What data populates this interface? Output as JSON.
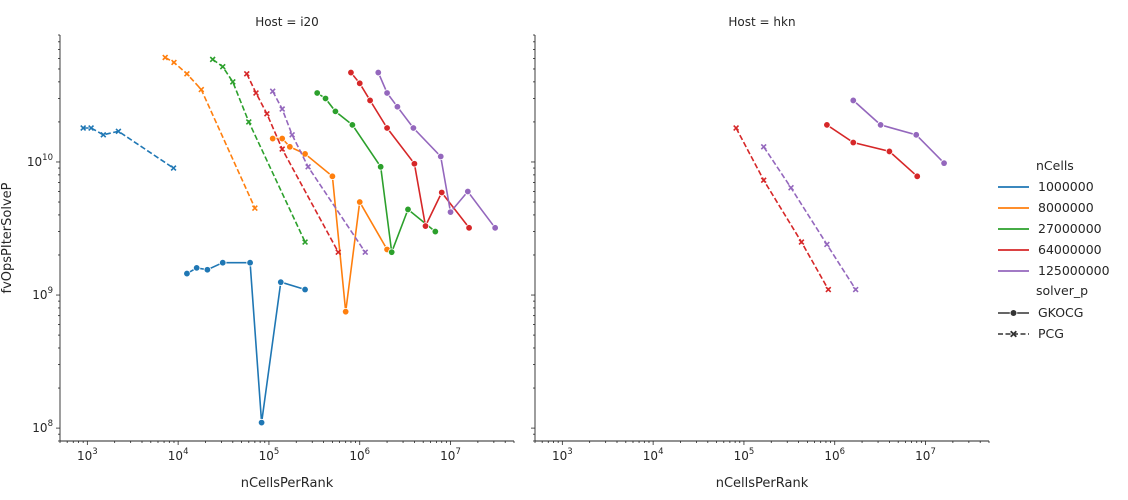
{
  "chart_data": {
    "type": "line",
    "x_scale": "log",
    "y_scale": "log",
    "xlabel": "nCellsPerRank",
    "ylabel": "fvOpsPIterSolveP",
    "xlim": [
      500,
      50000000
    ],
    "ylim": [
      80000000,
      90000000000
    ],
    "x_ticks": [
      {
        "value": 1000,
        "base": "10",
        "exp": "3"
      },
      {
        "value": 10000,
        "base": "10",
        "exp": "4"
      },
      {
        "value": 100000,
        "base": "10",
        "exp": "5"
      },
      {
        "value": 1000000,
        "base": "10",
        "exp": "6"
      },
      {
        "value": 10000000,
        "base": "10",
        "exp": "7"
      }
    ],
    "y_ticks": [
      {
        "value": 100000000,
        "base": "10",
        "exp": "8"
      },
      {
        "value": 1000000000,
        "base": "10",
        "exp": "9"
      },
      {
        "value": 10000000000,
        "base": "10",
        "exp": "10"
      }
    ],
    "legend": {
      "position": "right",
      "hue_title": "nCells",
      "hue_entries": [
        {
          "label": "1000000",
          "color": "#1f77b4"
        },
        {
          "label": "8000000",
          "color": "#ff7f0e"
        },
        {
          "label": "27000000",
          "color": "#2ca02c"
        },
        {
          "label": "64000000",
          "color": "#d62728"
        },
        {
          "label": "125000000",
          "color": "#9467bd"
        }
      ],
      "style_title": "solver_p",
      "style_entries": [
        {
          "label": "GKOCG",
          "marker": "circle",
          "dash": "solid"
        },
        {
          "label": "PCG",
          "marker": "x",
          "dash": "dashed"
        }
      ]
    },
    "panels": [
      {
        "title": "Host = i20",
        "series": [
          {
            "nCells": "1000000",
            "solver": "PCG",
            "x": [
              900,
              1100,
              1500,
              2200,
              8900
            ],
            "y": [
              18000000000.0,
              18000000000.0,
              16000000000.0,
              17000000000.0,
              9000000000.0
            ]
          },
          {
            "nCells": "1000000",
            "solver": "GKOCG",
            "x": [
              12500,
              16000,
              21000,
              31000,
              62000,
              83000,
              135000,
              250000
            ],
            "y": [
              1450000000.0,
              1600000000.0,
              1550000000.0,
              1750000000.0,
              1750000000.0,
              110000000.0,
              1250000000.0,
              1100000000.0
            ]
          },
          {
            "nCells": "8000000",
            "solver": "PCG",
            "x": [
              7200,
              9000,
              12500,
              18000,
              70000
            ],
            "y": [
              61000000000.0,
              56000000000.0,
              46000000000.0,
              35000000000.0,
              4500000000.0
            ]
          },
          {
            "nCells": "8000000",
            "solver": "GKOCG",
            "x": [
              110000,
              140000,
              170000,
              250000,
              500000,
              700000,
              1000000,
              2000000
            ],
            "y": [
              15000000000.0,
              15000000000.0,
              13000000000.0,
              11500000000.0,
              7800000000.0,
              750000000.0,
              5000000000.0,
              2200000000.0
            ]
          },
          {
            "nCells": "27000000",
            "solver": "PCG",
            "x": [
              24000,
              31000,
              40000,
              60000,
              250000
            ],
            "y": [
              59000000000.0,
              52000000000.0,
              40000000000.0,
              20000000000.0,
              2500000000.0
            ]
          },
          {
            "nCells": "27000000",
            "solver": "GKOCG",
            "x": [
              340000,
              420000,
              540000,
              830000,
              1700000,
              2250000,
              3400000,
              6800000
            ],
            "y": [
              33000000000.0,
              30000000000.0,
              24000000000.0,
              19000000000.0,
              9200000000.0,
              2100000000.0,
              4400000000.0,
              3000000000.0
            ]
          },
          {
            "nCells": "64000000",
            "solver": "PCG",
            "x": [
              57000,
              72000,
              95000,
              140000,
              580000
            ],
            "y": [
              46000000000.0,
              33000000000.0,
              23000000000.0,
              12500000000.0,
              2100000000.0
            ]
          },
          {
            "nCells": "64000000",
            "solver": "GKOCG",
            "x": [
              800000,
              1000000,
              1300000,
              2000000,
              4000000,
              5300000,
              8000000,
              16000000
            ],
            "y": [
              47000000000.0,
              39000000000.0,
              29000000000.0,
              18000000000.0,
              9700000000.0,
              3300000000.0,
              5900000000.0,
              3200000000.0
            ]
          },
          {
            "nCells": "125000000",
            "solver": "PCG",
            "x": [
              110000,
              140000,
              180000,
              270000,
              1150000
            ],
            "y": [
              34000000000.0,
              25000000000.0,
              16000000000.0,
              9200000000.0,
              2100000000.0
            ]
          },
          {
            "nCells": "125000000",
            "solver": "GKOCG",
            "x": [
              1600000,
              2000000,
              2600000,
              3900000,
              7800000,
              10000000,
              15500000,
              31000000
            ],
            "y": [
              47000000000.0,
              33000000000.0,
              26000000000.0,
              18000000000.0,
              11000000000.0,
              4200000000.0,
              6000000000.0,
              3200000000.0
            ]
          }
        ]
      },
      {
        "title": "Host = hkn",
        "series": [
          {
            "nCells": "64000000",
            "solver": "PCG",
            "x": [
              82000,
              165000,
              430000,
              850000
            ],
            "y": [
              18000000000.0,
              7300000000.0,
              2500000000.0,
              1100000000.0
            ]
          },
          {
            "nCells": "64000000",
            "solver": "GKOCG",
            "x": [
              820000,
              1600000,
              4000000,
              8100000
            ],
            "y": [
              19000000000.0,
              14000000000.0,
              12000000000.0,
              7800000000.0
            ]
          },
          {
            "nCells": "125000000",
            "solver": "PCG",
            "x": [
              165000,
              330000,
              820000,
              1700000
            ],
            "y": [
              13000000000.0,
              6400000000.0,
              2400000000.0,
              1100000000.0
            ]
          },
          {
            "nCells": "125000000",
            "solver": "GKOCG",
            "x": [
              1600000,
              3200000,
              7900000,
              16000000
            ],
            "y": [
              29000000000.0,
              19000000000.0,
              16000000000.0,
              9800000000.0
            ]
          }
        ]
      }
    ]
  }
}
